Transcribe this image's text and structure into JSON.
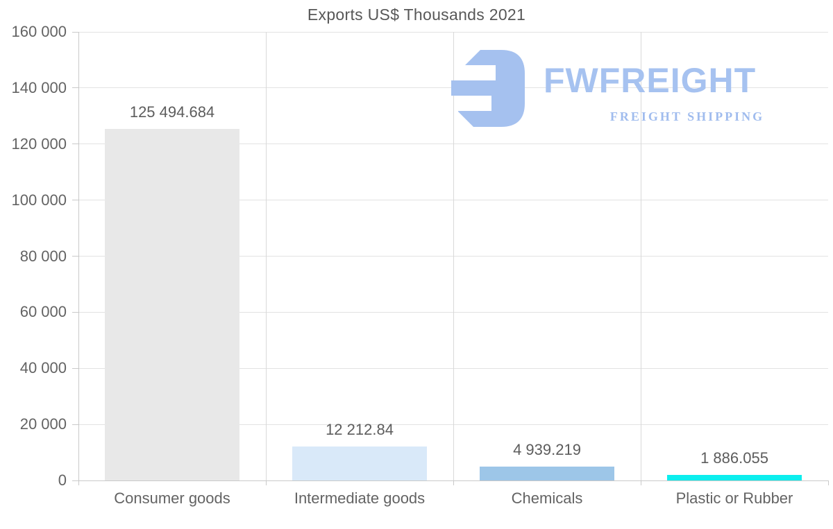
{
  "chart_data": {
    "type": "bar",
    "title": "Exports US$ Thousands 2021",
    "categories": [
      "Consumer goods",
      "Intermediate goods",
      "Chemicals",
      "Plastic or Rubber"
    ],
    "values": [
      125494.684,
      12212.84,
      4939.219,
      1886.055
    ],
    "value_labels": [
      "125 494.684",
      "12 212.84",
      "4 939.219",
      "1 886.055"
    ],
    "bar_colors": [
      "#e8e8e8",
      "#d9e9f9",
      "#9dc6e8",
      "#0ceeee"
    ],
    "ylim": [
      0,
      160000
    ],
    "ytick_step": 20000,
    "ytick_labels": [
      "0",
      "20 000",
      "40 000",
      "60 000",
      "80 000",
      "100 000",
      "120 000",
      "140 000",
      "160 000"
    ],
    "xlabel": "",
    "ylabel": "",
    "grid": true,
    "legend": false
  },
  "branding": {
    "name": "FWFREIGHT",
    "tagline": "FREIGHT SHIPPING",
    "logo_color": "#a5c1ef"
  }
}
